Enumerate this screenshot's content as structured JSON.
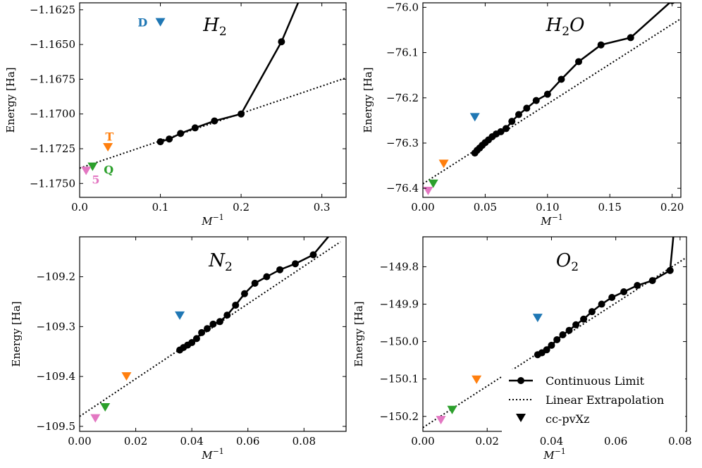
{
  "figure": {
    "legend": {
      "continuous": "Continuous Limit",
      "linear": "Linear Extrapolation",
      "basis": "cc-pvXz",
      "placement": "lower-right of bottom-right panel"
    },
    "colors": {
      "line": "#000000",
      "D": "#1f77b4",
      "T": "#ff7f0e",
      "Q": "#2ca02c",
      "5": "#e377c2"
    }
  },
  "chart_data": [
    {
      "type": "line",
      "title_main": "H",
      "title_sub": "2",
      "title_tail": "",
      "xlabel_main": "M",
      "xlabel_sup": "−1",
      "ylabel": "Energy [Ha]",
      "xlim": [
        0.0,
        0.33
      ],
      "ylim": [
        -1.176,
        -1.162
      ],
      "xticks": [
        0.0,
        0.1,
        0.2,
        0.3
      ],
      "xtick_labels": [
        "0.0",
        "0.1",
        "0.2",
        "0.3"
      ],
      "yticks": [
        -1.175,
        -1.1725,
        -1.17,
        -1.1675,
        -1.165,
        -1.1625
      ],
      "ytick_labels": [
        "−1.1750",
        "−1.1725",
        "−1.1700",
        "−1.1675",
        "−1.1650",
        "−1.1625"
      ],
      "series": [
        {
          "name": "Continuous Limit",
          "x": [
            0.1,
            0.111,
            0.125,
            0.143,
            0.167,
            0.2,
            0.25,
            0.3
          ],
          "y": [
            -1.172,
            -1.1718,
            -1.1714,
            -1.171,
            -1.1705,
            -1.17,
            -1.1648,
            -1.158
          ],
          "markers": [
            true,
            true,
            true,
            true,
            true,
            true,
            true,
            false
          ]
        },
        {
          "name": "Linear Extrapolation",
          "x": [
            0.0,
            0.33
          ],
          "y": [
            -1.1739,
            -1.1674
          ]
        }
      ],
      "basis_points": [
        {
          "label": "D",
          "x": 0.1,
          "y": -1.1634,
          "color": "#1f77b4",
          "label_x": 0.078,
          "label_y": -1.1634
        },
        {
          "label": "T",
          "x": 0.035,
          "y": -1.1724,
          "color": "#ff7f0e",
          "label_x": 0.037,
          "label_y": -1.1716
        },
        {
          "label": "Q",
          "x": 0.016,
          "y": -1.1738,
          "color": "#2ca02c",
          "label_x": 0.036,
          "label_y": -1.174
        },
        {
          "label": "5",
          "x": 0.008,
          "y": -1.1741,
          "color": "#e377c2",
          "label_x": 0.02,
          "label_y": -1.1747
        }
      ]
    },
    {
      "type": "line",
      "title_main": "H",
      "title_sub": "2",
      "title_tail": "O",
      "xlabel_main": "M",
      "xlabel_sup": "−1",
      "ylabel": "Energy [Ha]",
      "xlim": [
        0.0,
        0.207
      ],
      "ylim": [
        -76.42,
        -75.99
      ],
      "xticks": [
        0.0,
        0.05,
        0.1,
        0.15,
        0.2
      ],
      "xtick_labels": [
        "0.00",
        "0.05",
        "0.10",
        "0.15",
        "0.20"
      ],
      "yticks": [
        -76.4,
        -76.3,
        -76.2,
        -76.1,
        -76.0
      ],
      "ytick_labels": [
        "−76.4",
        "−76.3",
        "−76.2",
        "−76.1",
        "−76.0"
      ],
      "series": [
        {
          "name": "Continuous Limit",
          "x": [
            0.0417,
            0.0435,
            0.0455,
            0.0476,
            0.05,
            0.0526,
            0.0556,
            0.0588,
            0.0625,
            0.0667,
            0.0714,
            0.0769,
            0.0833,
            0.0909,
            0.1,
            0.1111,
            0.125,
            0.1429,
            0.1667,
            0.2,
            0.202
          ],
          "y": [
            -76.322,
            -76.316,
            -76.311,
            -76.305,
            -76.299,
            -76.293,
            -76.286,
            -76.28,
            -76.275,
            -76.268,
            -76.252,
            -76.237,
            -76.223,
            -76.206,
            -76.192,
            -76.159,
            -76.12,
            -76.083,
            -76.067,
            -75.985,
            -75.985
          ],
          "markers": [
            true,
            true,
            true,
            true,
            true,
            true,
            true,
            true,
            true,
            true,
            true,
            true,
            true,
            true,
            true,
            true,
            true,
            true,
            true,
            true,
            false
          ]
        },
        {
          "name": "Linear Extrapolation",
          "x": [
            0.0,
            0.207
          ],
          "y": [
            -76.39,
            -76.025
          ]
        }
      ],
      "basis_points": [
        {
          "label": "D",
          "x": 0.0417,
          "y": -76.243,
          "color": "#1f77b4"
        },
        {
          "label": "T",
          "x": 0.0167,
          "y": -76.346,
          "color": "#ff7f0e"
        },
        {
          "label": "Q",
          "x": 0.0083,
          "y": -76.39,
          "color": "#2ca02c"
        },
        {
          "label": "5",
          "x": 0.0042,
          "y": -76.406,
          "color": "#e377c2"
        }
      ]
    },
    {
      "type": "line",
      "title_main": "N",
      "title_sub": "2",
      "title_tail": "",
      "xlabel_main": "M",
      "xlabel_sup": "−1",
      "ylabel": "Energy [Ha]",
      "xlim": [
        0.0,
        0.095
      ],
      "ylim": [
        -109.51,
        -109.12
      ],
      "xticks": [
        0.0,
        0.02,
        0.04,
        0.06,
        0.08
      ],
      "xtick_labels": [
        "0.00",
        "0.02",
        "0.04",
        "0.06",
        "0.08"
      ],
      "yticks": [
        -109.5,
        -109.4,
        -109.3,
        -109.2
      ],
      "ytick_labels": [
        "−109.5",
        "−109.4",
        "−109.3",
        "−109.2"
      ],
      "series": [
        {
          "name": "Continuous Limit",
          "x": [
            0.0357,
            0.037,
            0.0385,
            0.04,
            0.0417,
            0.0435,
            0.0455,
            0.0476,
            0.05,
            0.0526,
            0.0556,
            0.0588,
            0.0625,
            0.0667,
            0.0714,
            0.0769,
            0.0833,
            0.0909,
            0.0922
          ],
          "y": [
            -109.347,
            -109.342,
            -109.337,
            -109.332,
            -109.324,
            -109.312,
            -109.304,
            -109.295,
            -109.29,
            -109.277,
            -109.257,
            -109.234,
            -109.213,
            -109.2,
            -109.186,
            -109.174,
            -109.156,
            -109.105,
            -109.105
          ],
          "markers": [
            true,
            true,
            true,
            true,
            true,
            true,
            true,
            true,
            true,
            true,
            true,
            true,
            true,
            true,
            true,
            true,
            true,
            false,
            false
          ]
        },
        {
          "name": "Linear Extrapolation",
          "x": [
            0.0,
            0.093
          ],
          "y": [
            -109.48,
            -109.13
          ]
        }
      ],
      "basis_points": [
        {
          "label": "D",
          "x": 0.0357,
          "y": -109.278,
          "color": "#1f77b4"
        },
        {
          "label": "T",
          "x": 0.0167,
          "y": -109.4,
          "color": "#ff7f0e"
        },
        {
          "label": "Q",
          "x": 0.0091,
          "y": -109.462,
          "color": "#2ca02c"
        },
        {
          "label": "5",
          "x": 0.0056,
          "y": -109.484,
          "color": "#e377c2"
        }
      ]
    },
    {
      "type": "line",
      "title_main": "O",
      "title_sub": "2",
      "title_tail": "",
      "xlabel_main": "M",
      "xlabel_sup": "−1",
      "ylabel": "Energy [Ha]",
      "xlim": [
        0.0,
        0.082
      ],
      "ylim": [
        -150.24,
        -149.72
      ],
      "xticks": [
        0.0,
        0.02,
        0.04,
        0.06,
        0.08
      ],
      "xtick_labels": [
        "0.00",
        "0.02",
        "0.04",
        "0.06",
        "0.08"
      ],
      "yticks": [
        -150.2,
        -150.1,
        -150.0,
        -149.9,
        -149.8
      ],
      "ytick_labels": [
        "−150.2",
        "−150.1",
        "−150.0",
        "−149.9",
        "−149.8"
      ],
      "series": [
        {
          "name": "Continuous Limit",
          "x": [
            0.0357,
            0.037,
            0.0385,
            0.04,
            0.0417,
            0.0435,
            0.0455,
            0.0476,
            0.05,
            0.0526,
            0.0556,
            0.0588,
            0.0625,
            0.0667,
            0.0714,
            0.0769,
            0.0779
          ],
          "y": [
            -150.035,
            -150.03,
            -150.022,
            -150.01,
            -149.995,
            -149.982,
            -149.97,
            -149.955,
            -149.94,
            -149.92,
            -149.9,
            -149.882,
            -149.867,
            -149.85,
            -149.837,
            -149.81,
            -149.72
          ],
          "markers": [
            true,
            true,
            true,
            true,
            true,
            true,
            true,
            true,
            true,
            true,
            true,
            true,
            true,
            true,
            true,
            true,
            false
          ]
        },
        {
          "name": "Linear Extrapolation",
          "x": [
            0.0,
            0.082
          ],
          "y": [
            -150.23,
            -149.775
          ]
        }
      ],
      "basis_points": [
        {
          "label": "D",
          "x": 0.0357,
          "y": -149.937,
          "color": "#1f77b4"
        },
        {
          "label": "T",
          "x": 0.0167,
          "y": -150.102,
          "color": "#ff7f0e"
        },
        {
          "label": "Q",
          "x": 0.0091,
          "y": -150.183,
          "color": "#2ca02c"
        },
        {
          "label": "5",
          "x": 0.0056,
          "y": -150.21,
          "color": "#e377c2"
        }
      ]
    }
  ]
}
